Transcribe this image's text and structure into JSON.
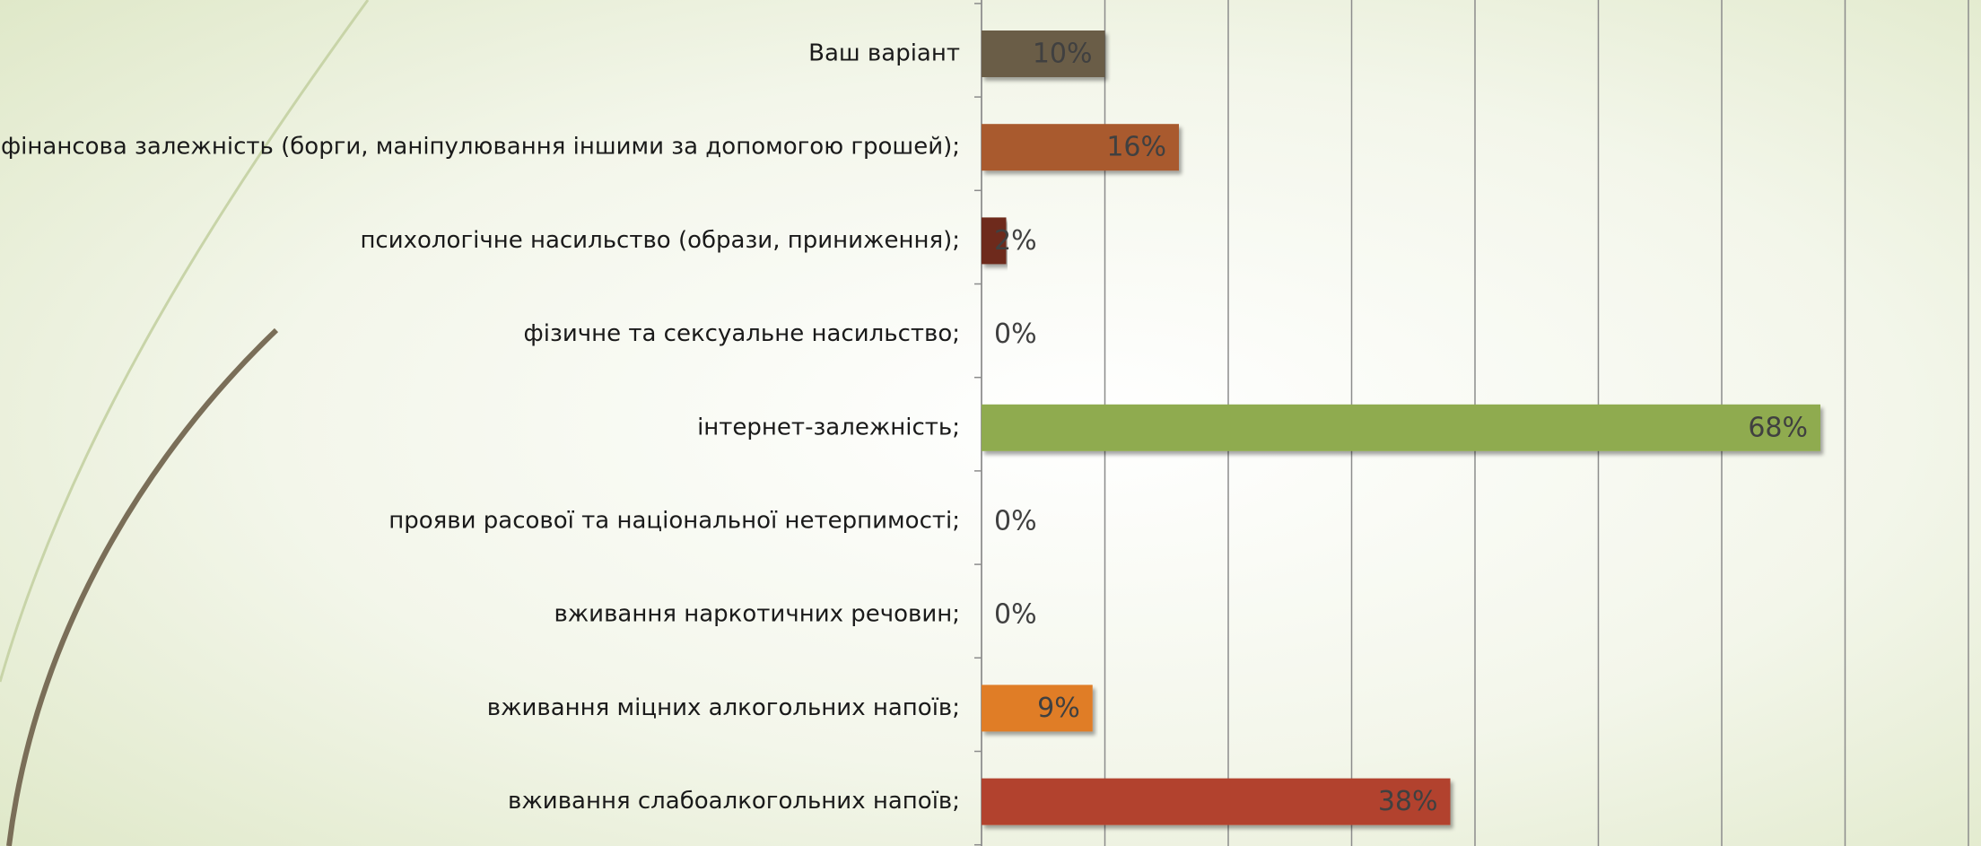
{
  "chart_data": {
    "type": "bar",
    "orientation": "horizontal",
    "categories": [
      "Ваш варіант",
      "фінансова залежність (борги, маніпулювання іншими за допомогою грошей);",
      "психологічне насильство (образи, приниження);",
      "фізичне та сексуальне насильство;",
      "інтернет-залежність;",
      "прояви расової та національної нетерпимості;",
      "вживання наркотичних речовин;",
      "вживання міцних алкогольних напоїв;",
      "вживання слабоалкогольних напоїв;"
    ],
    "values": [
      10,
      16,
      2,
      0,
      68,
      0,
      0,
      9,
      38
    ],
    "value_labels": [
      "10%",
      "16%",
      "2%",
      "0%",
      "68%",
      "0%",
      "0%",
      "9%",
      "38%"
    ],
    "colors": [
      "#6b5d47",
      "#a95a2d",
      "#6e2a1c",
      "#8a8a8a",
      "#8fab50",
      "#8a8a8a",
      "#8a8a8a",
      "#e07d28",
      "#b2422f"
    ],
    "xlim": [
      0,
      80
    ],
    "xticks": [
      0,
      10,
      20,
      30,
      40,
      50,
      60,
      70,
      80
    ],
    "grid": true
  }
}
